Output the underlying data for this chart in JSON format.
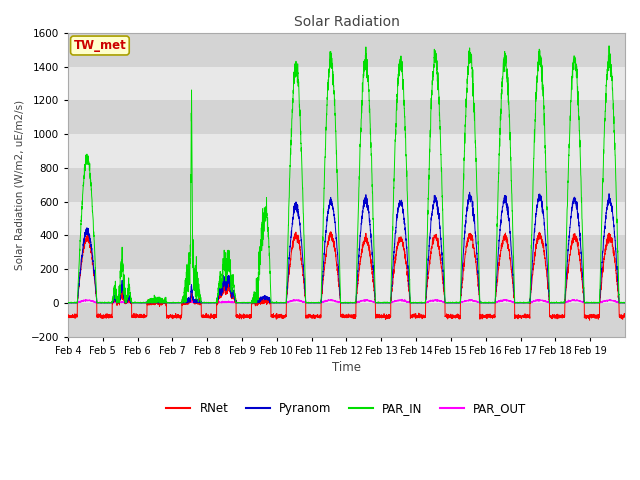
{
  "title": "Solar Radiation",
  "xlabel": "Time",
  "ylabel": "Solar Radiation (W/m2, uE/m2/s)",
  "ylim": [
    -200,
    1600
  ],
  "yticks": [
    -200,
    0,
    200,
    400,
    600,
    800,
    1000,
    1200,
    1400,
    1600
  ],
  "x_labels": [
    "Feb 4",
    "Feb 5",
    "Feb 6",
    "Feb 7",
    "Feb 8",
    "Feb 9",
    "Feb 10",
    "Feb 11",
    "Feb 12",
    "Feb 13",
    "Feb 14",
    "Feb 15",
    "Feb 16",
    "Feb 17",
    "Feb 18",
    "Feb 19"
  ],
  "colors": {
    "RNet": "#ff0000",
    "Pyranom": "#0000cc",
    "PAR_IN": "#00dd00",
    "PAR_OUT": "#ff00ff"
  },
  "fig_bg": "#ffffff",
  "plot_bg": "#e8e8e8",
  "band_color": "#d0d0d0",
  "station_label": "TW_met",
  "station_label_color": "#cc0000",
  "station_box_fill": "#ffffcc",
  "station_box_edge": "#aaa000",
  "num_days": 16,
  "points_per_day": 288
}
